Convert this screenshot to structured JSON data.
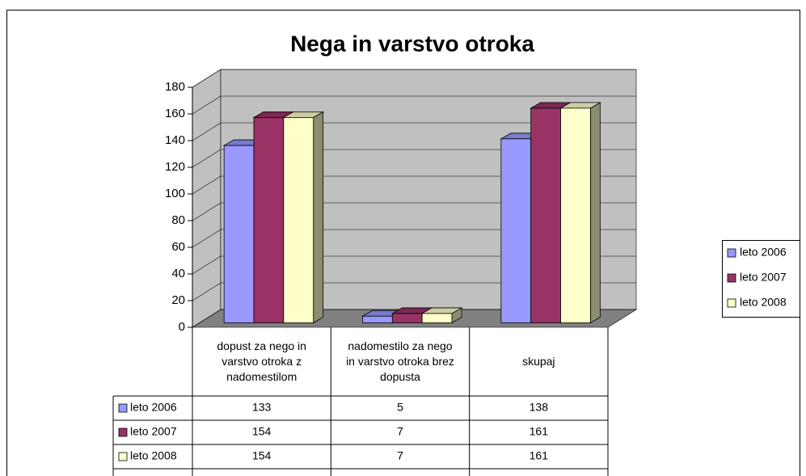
{
  "chart_data": {
    "type": "bar3d",
    "title": "Nega in varstvo otroka",
    "categories": [
      "dopust za nego in varstvo otroka z nadomestilom",
      "nadomestilo za nego in varstvo otroka brez dopusta",
      "skupaj"
    ],
    "series": [
      {
        "name": "leto 2006",
        "color": "#9999ff",
        "values": [
          133,
          5,
          138
        ]
      },
      {
        "name": "leto 2007",
        "color": "#993366",
        "values": [
          154,
          7,
          161
        ]
      },
      {
        "name": "leto 2008",
        "color": "#ffffcc",
        "values": [
          154,
          7,
          161
        ]
      }
    ],
    "ylim": [
      0,
      180
    ],
    "yticks": [
      0,
      20,
      40,
      60,
      80,
      100,
      120,
      140,
      160,
      180
    ],
    "grid": true,
    "legend": "right",
    "data_table": true,
    "wall_color": "#c0c0c0",
    "floor_color": "#808080"
  }
}
